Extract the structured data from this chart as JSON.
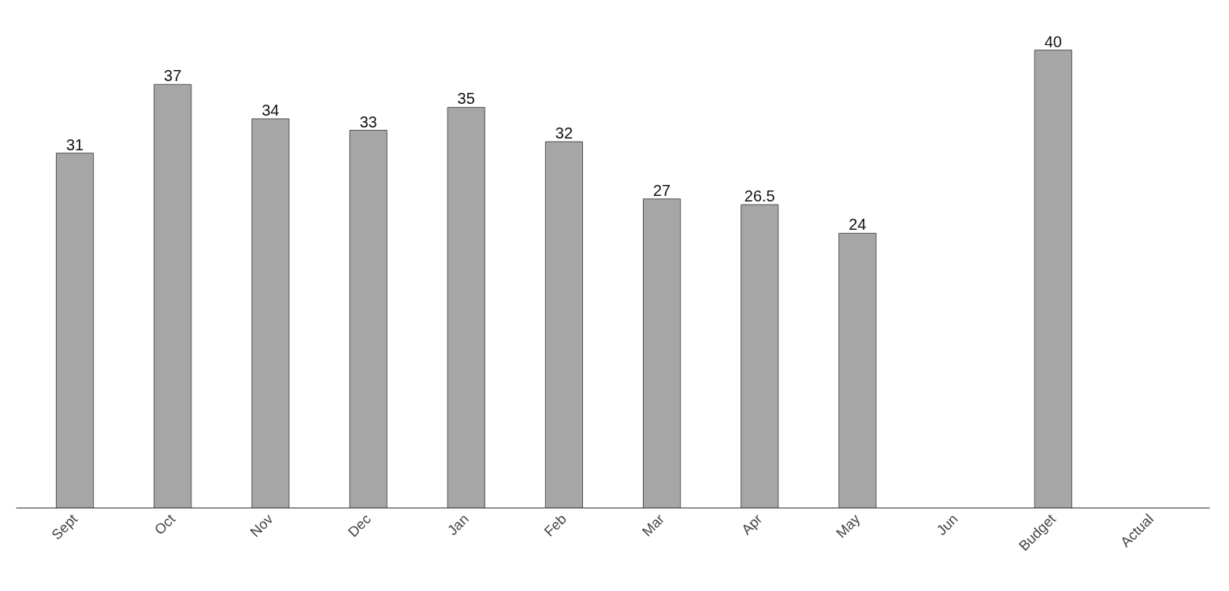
{
  "chart_data": {
    "type": "bar",
    "categories": [
      "Sept",
      "Oct",
      "Nov",
      "Dec",
      "Jan",
      "Feb",
      "Mar",
      "Apr",
      "May",
      "Jun",
      "Budget",
      "Actual"
    ],
    "values": [
      31,
      37,
      34,
      33,
      35,
      32,
      27,
      26.5,
      24,
      null,
      40,
      null
    ],
    "color": "#a6a6a6",
    "data_labels": true
  }
}
